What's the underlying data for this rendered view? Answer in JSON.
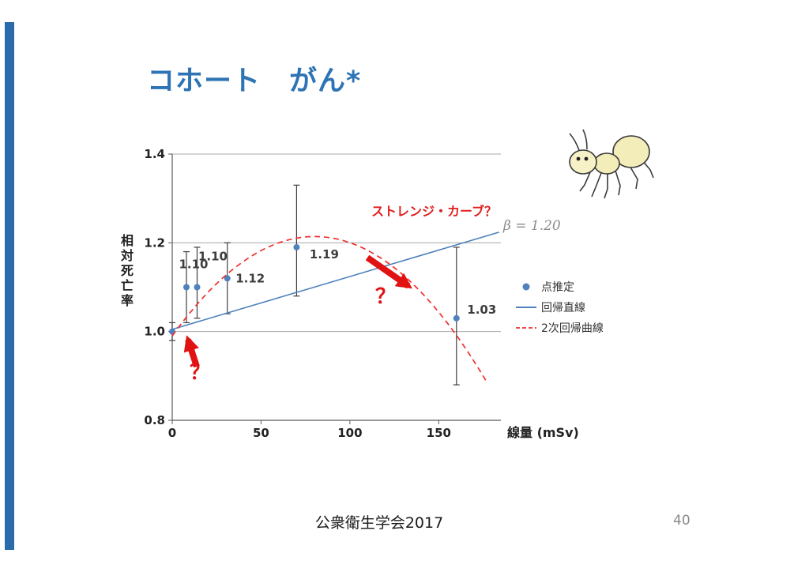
{
  "slide": {
    "title": "コホート　がん*",
    "footer": "公衆衛生学会2017",
    "page_number": "40"
  },
  "colors": {
    "accent_blue": "#2e74b5",
    "series_blue": "#4f81bd",
    "annotation_red": "#e01212",
    "beta_gray": "#8c8c8c"
  },
  "icons": {
    "ant": "ant-illustration",
    "arrow_upper": "red-arrow-icon",
    "arrow_lower": "red-arrow-icon"
  },
  "chart_data": {
    "type": "composite",
    "title": "",
    "xlabel": "線量 (mSv)",
    "ylabel": "相対死亡率",
    "xlim": [
      0,
      185
    ],
    "ylim": [
      0.8,
      1.4
    ],
    "x_ticks": [
      "0",
      "50",
      "100",
      "150"
    ],
    "x_tick_values": [
      0,
      50,
      100,
      150
    ],
    "y_ticks": [
      "1.4",
      "1.2",
      "1.0",
      "0.8"
    ],
    "y_tick_values": [
      1.4,
      1.2,
      1.0,
      0.8
    ],
    "gridline_values": [
      1.0,
      1.2,
      1.4
    ],
    "grid": "horizontal-only",
    "legend_position": "right",
    "series": [
      {
        "name": "点推定",
        "type": "scatter",
        "color": "#4f81bd",
        "points": [
          {
            "x": 0,
            "y": 1.0,
            "lo": 0.98,
            "hi": 1.02,
            "label": "",
            "dx": 0,
            "dy": 0
          },
          {
            "x": 8,
            "y": 1.1,
            "lo": 1.02,
            "hi": 1.18,
            "label": "1.10",
            "dx": 9,
            "dy": -24
          },
          {
            "x": 14,
            "y": 1.1,
            "lo": 1.03,
            "hi": 1.19,
            "label": "1.10",
            "dx": 20,
            "dy": -34
          },
          {
            "x": 31,
            "y": 1.12,
            "lo": 1.04,
            "hi": 1.2,
            "label": "1.12",
            "dx": 29,
            "dy": 5
          },
          {
            "x": 70,
            "y": 1.19,
            "lo": 1.08,
            "hi": 1.33,
            "label": "1.19",
            "dx": 35,
            "dy": 14
          },
          {
            "x": 160,
            "y": 1.03,
            "lo": 0.88,
            "hi": 1.19,
            "label": "1.03",
            "dx": 32,
            "dy": -6
          }
        ]
      },
      {
        "name": "回帰直線",
        "type": "line",
        "color": "#4f81bd",
        "x0": 0,
        "y0": 1.005,
        "x1": 184,
        "y1": 1.224
      },
      {
        "name": "2次回帰曲線",
        "type": "quad",
        "color": "#f03030",
        "a": 0.99,
        "b": 0.0055947,
        "c": -3.4909e-05,
        "x_start": 0,
        "x_end": 177
      }
    ],
    "legend": [
      {
        "label": "点推定",
        "marker": "dot",
        "color": "#4f81bd"
      },
      {
        "label": "回帰直線",
        "marker": "line",
        "color": "#4f81bd"
      },
      {
        "label": "2次回帰曲線",
        "marker": "dashed",
        "color": "#f03030"
      }
    ],
    "annotations": {
      "strange_curve_label": "ストレンジ・カーブ？",
      "beta_label": "β = 1.20",
      "question_upper": "？",
      "question_lower": "？"
    }
  }
}
